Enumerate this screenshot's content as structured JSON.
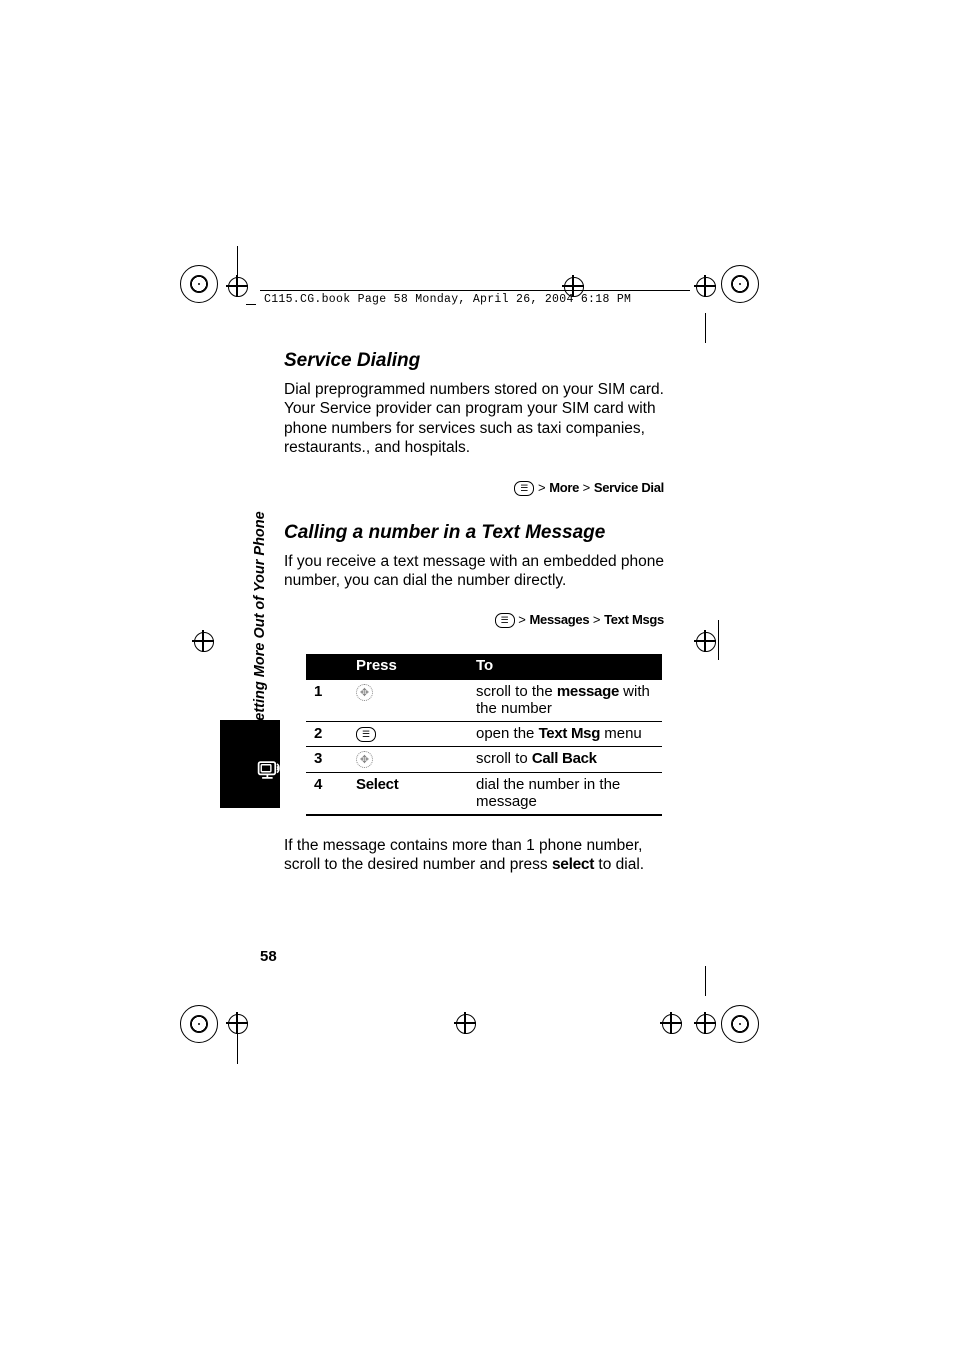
{
  "header_text": "C115.CG.book  Page 58  Monday, April 26, 2004  6:18 PM",
  "spine_label": "Getting More Out of Your Phone",
  "page_number": "58",
  "section1": {
    "heading": "Service Dialing",
    "para": "Dial preprogrammed numbers stored on your SIM card. Your Service provider can program your SIM card with phone numbers for services such as taxi companies, restaurants., and hospitals.",
    "path_sep": " > ",
    "path_item1": "More",
    "path_item2": "Service Dial"
  },
  "section2": {
    "heading": "Calling a number in a Text Message",
    "para": "If you receive a text message with an embedded phone number, you can dial the number directly.",
    "path_sep": " > ",
    "path_item1": "Messages",
    "path_item2": "Text Msgs"
  },
  "table": {
    "head_press": "Press",
    "head_to": "To",
    "rows": [
      {
        "num": "1",
        "press_type": "nav",
        "to_pre": "scroll to the ",
        "to_bold": "message",
        "to_post": " with the number"
      },
      {
        "num": "2",
        "press_type": "menu",
        "to_pre": "open the ",
        "to_bold": "Text Msg",
        "to_post": " menu"
      },
      {
        "num": "3",
        "press_type": "nav",
        "to_pre": "scroll to ",
        "to_bold": "Call Back",
        "to_post": ""
      },
      {
        "num": "4",
        "press_type": "text",
        "press_text": "Select",
        "to_pre": "dial the number in the message",
        "to_bold": "",
        "to_post": ""
      }
    ]
  },
  "footer_para_pre": "If the message contains more than 1 phone number, scroll to the desired number and press ",
  "footer_para_bold": "select",
  "footer_para_post": " to dial.",
  "colors": {
    "black": "#000000",
    "white": "#ffffff"
  }
}
